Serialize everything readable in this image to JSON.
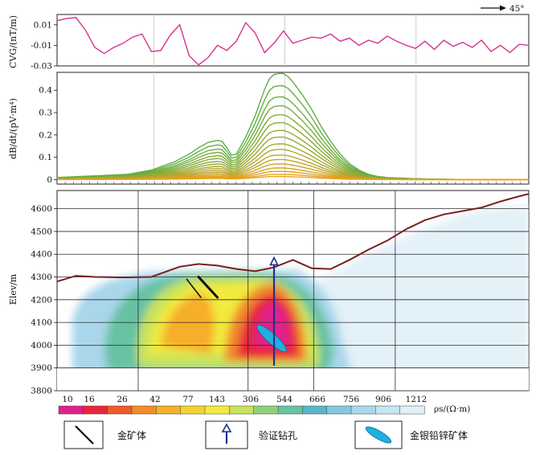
{
  "direction_label": "45°",
  "colors": {
    "cvg_line": "#d6338c",
    "terrain": "#7b1f1f",
    "drill": "#1f2f8f",
    "gold_body": "#111111",
    "agpbzn_body": "#20b0e0",
    "db_high": "#5ab043",
    "db_low": "#f0a020"
  },
  "chart_data": [
    {
      "type": "line",
      "ylabel": "CVG/(nT/m)",
      "ylim": [
        -0.03,
        0.02
      ],
      "yticks": [
        "0.01",
        "-0.01",
        "-0.03"
      ],
      "ytick_values": [
        0.01,
        -0.01,
        -0.03
      ],
      "xlim": [
        0,
        100
      ],
      "series": [
        {
          "x": [
            0,
            2,
            4,
            6,
            8,
            10,
            12,
            14,
            16,
            18,
            20,
            22,
            24,
            26,
            28,
            30,
            32,
            34,
            36,
            38,
            40,
            42,
            44,
            46,
            48,
            50,
            52,
            54,
            56,
            58,
            60,
            62,
            64,
            66,
            68,
            70,
            72,
            74,
            76,
            78,
            80,
            82,
            84,
            86,
            88,
            90,
            92,
            94,
            96,
            98,
            100
          ],
          "values": [
            0.014,
            0.016,
            0.017,
            0.005,
            -0.012,
            -0.018,
            -0.012,
            -0.008,
            -0.002,
            0.001,
            -0.016,
            -0.015,
            0.0,
            0.01,
            -0.02,
            -0.029,
            -0.022,
            -0.01,
            -0.015,
            -0.006,
            0.012,
            0.002,
            -0.017,
            -0.008,
            0.004,
            -0.008,
            -0.005,
            -0.002,
            -0.003,
            0.001,
            -0.006,
            -0.003,
            -0.01,
            -0.005,
            -0.008,
            -0.001,
            -0.006,
            -0.01,
            -0.013,
            -0.006,
            -0.014,
            -0.005,
            -0.011,
            -0.007,
            -0.012,
            -0.005,
            -0.016,
            -0.01,
            -0.017,
            -0.009,
            -0.01
          ]
        }
      ]
    },
    {
      "type": "line",
      "ylabel": "dB/dt/(pV·m⁴)",
      "ylim": [
        -0.02,
        0.48
      ],
      "yticks": [
        "0.4",
        "0.3",
        "0.2",
        "0.1",
        "0"
      ],
      "ytick_values": [
        0.4,
        0.3,
        0.2,
        0.1,
        0
      ],
      "xlim": [
        0,
        100
      ],
      "curve_shape": {
        "x": [
          0,
          5,
          10,
          15,
          20,
          25,
          28,
          30,
          32,
          34,
          35,
          36,
          37,
          38,
          40,
          42,
          44,
          45,
          46,
          47,
          48,
          49,
          50,
          52,
          54,
          56,
          58,
          60,
          62,
          64,
          66,
          68,
          70,
          75,
          80,
          85,
          90,
          95,
          100
        ],
        "shape": [
          0.02,
          0.03,
          0.04,
          0.05,
          0.09,
          0.17,
          0.24,
          0.3,
          0.35,
          0.37,
          0.36,
          0.3,
          0.23,
          0.24,
          0.4,
          0.6,
          0.85,
          0.95,
          0.99,
          1.0,
          1.0,
          0.97,
          0.92,
          0.8,
          0.66,
          0.5,
          0.36,
          0.24,
          0.15,
          0.09,
          0.05,
          0.03,
          0.02,
          0.01,
          0.005,
          0.002,
          0.0,
          0.0,
          0.0
        ]
      },
      "series_peaks": [
        0.475,
        0.42,
        0.37,
        0.33,
        0.29,
        0.255,
        0.22,
        0.19,
        0.16,
        0.135,
        0.11,
        0.09,
        0.07,
        0.052,
        0.037,
        0.024,
        0.014
      ]
    },
    {
      "type": "heatmap",
      "ylabel": "Elev/m",
      "ylim": [
        3800,
        4680
      ],
      "yticks": [
        "4600",
        "4500",
        "4400",
        "4300",
        "4200",
        "4100",
        "4000",
        "3900",
        "3800"
      ],
      "ytick_values": [
        4600,
        4500,
        4400,
        4300,
        4200,
        4100,
        4000,
        3900,
        3800
      ],
      "xlim": [
        0,
        100
      ],
      "terrain": {
        "x": [
          0,
          4,
          8,
          14,
          20,
          26,
          30,
          34,
          38,
          42,
          46,
          50,
          54,
          58,
          62,
          66,
          70,
          74,
          78,
          82,
          86,
          90,
          94,
          98,
          100
        ],
        "elev": [
          4280,
          4305,
          4300,
          4298,
          4300,
          4345,
          4357,
          4350,
          4335,
          4325,
          4342,
          4375,
          4338,
          4335,
          4375,
          4420,
          4460,
          4510,
          4550,
          4575,
          4590,
          4605,
          4632,
          4655,
          4665
        ]
      },
      "drill_hole": {
        "x": 46,
        "top": 4385,
        "bottom": 3910
      },
      "gold_bodies": [
        {
          "x1": 27.5,
          "y1": 4290,
          "x2": 30.5,
          "y2": 4210
        },
        {
          "x1": 30,
          "y1": 4300,
          "x2": 34,
          "y2": 4210
        }
      ],
      "agpbzn_body": {
        "cx": 45.5,
        "cy": 4030,
        "rx": 55,
        "ry": 11,
        "angle": 42
      },
      "colorbar": {
        "label": "ρs/(Ω·m)",
        "labels": [
          "10",
          "16",
          "26",
          "42",
          "77",
          "143",
          "306",
          "544",
          "666",
          "756",
          "906",
          "1212"
        ],
        "colors": [
          "#e0218a",
          "#e8263a",
          "#ef5a2a",
          "#f58a2a",
          "#f7b02c",
          "#f4d230",
          "#f2ec40",
          "#c8e25a",
          "#8ed07a",
          "#67c3a0",
          "#5ab6c8",
          "#84c8e0",
          "#a8d8ec",
          "#c7e5f2",
          "#e0f1f8"
        ]
      }
    }
  ],
  "legend": [
    {
      "icon": "gold-body-icon",
      "label": "金矿体"
    },
    {
      "icon": "drill-hole-icon",
      "label": "验证钻孔"
    },
    {
      "icon": "agpbzn-body-icon",
      "label": "金银铅锌矿体"
    }
  ]
}
